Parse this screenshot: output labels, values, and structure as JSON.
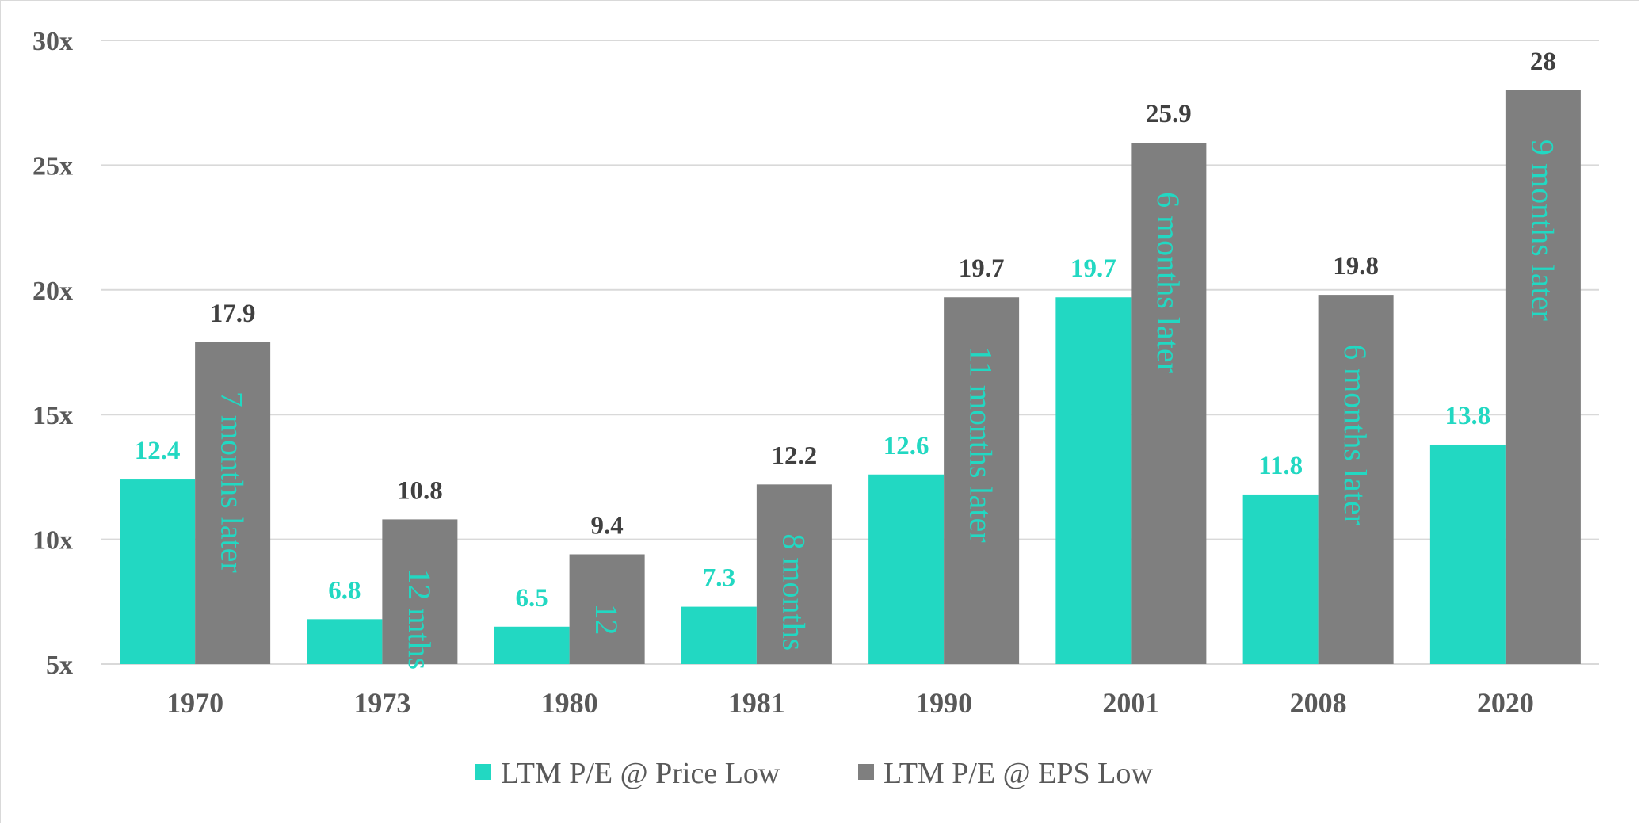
{
  "chart_data": {
    "type": "bar",
    "categories": [
      "1970",
      "1973",
      "1980",
      "1981",
      "1990",
      "2001",
      "2008",
      "2020"
    ],
    "series": [
      {
        "name": "LTM P/E @ Price Low",
        "color": "#22d8c2",
        "values": [
          12.4,
          6.8,
          6.5,
          7.3,
          12.6,
          19.7,
          11.8,
          13.8
        ],
        "labels": [
          "12.4",
          "6.8",
          "6.5",
          "7.3",
          "12.6",
          "19.7",
          "11.8",
          "13.8"
        ]
      },
      {
        "name": "LTM P/E @ EPS Low",
        "color": "#7f7f7f",
        "values": [
          17.9,
          10.8,
          9.4,
          12.2,
          19.7,
          25.9,
          19.8,
          28
        ],
        "labels": [
          "17.9",
          "10.8",
          "9.4",
          "12.2",
          "19.7",
          "25.9",
          "19.8",
          "28"
        ]
      }
    ],
    "annotations": [
      "7 months later",
      "12 mths",
      "12",
      "8 months",
      "11 months later",
      "6 months later",
      "6 months later",
      "9 months later"
    ],
    "annotation_color": "#22d8c2",
    "ylim": [
      5,
      30
    ],
    "yticks": [
      5,
      10,
      15,
      20,
      25,
      30
    ],
    "ytick_labels": [
      "5x",
      "10x",
      "15x",
      "20x",
      "25x",
      "30x"
    ],
    "gridline_color": "#d9d9d9",
    "grid": true,
    "legend_position": "bottom-center",
    "title": "",
    "xlabel": "",
    "ylabel": ""
  }
}
